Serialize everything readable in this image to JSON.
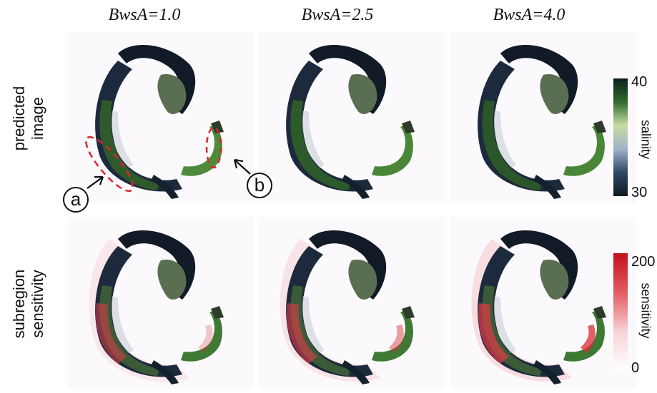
{
  "columns": {
    "c1": "BwsA=1.0",
    "c2": "BwsA=2.5",
    "c3": "BwsA=4.0"
  },
  "rows": {
    "top": {
      "line1": "predicted",
      "line2": "image"
    },
    "bottom": {
      "line1": "subregion",
      "line2": "sensitivity"
    }
  },
  "colorbar_salinity": {
    "max": "40",
    "min": "30",
    "title": "salinity",
    "colors": [
      "#0b1f1c",
      "#2f6b2d",
      "#c7dca3",
      "#9fb2c9",
      "#2f4766",
      "#0f1a24"
    ]
  },
  "colorbar_sensitivity": {
    "max": "200",
    "min": "0",
    "title": "sensitivity",
    "colors": [
      "#c4101d",
      "#e25b62",
      "#f8d3d6",
      "#ffffff"
    ]
  },
  "callouts": {
    "a": "a",
    "b": "b"
  }
}
